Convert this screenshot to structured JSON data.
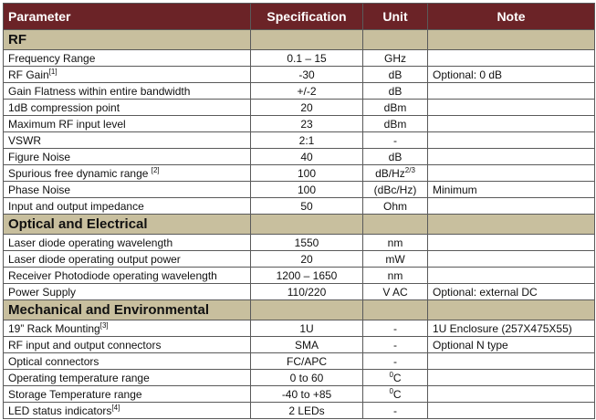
{
  "headers": [
    "Parameter",
    "Specification",
    "Unit",
    "Note"
  ],
  "colors": {
    "header_bg": "#6b2327",
    "section_bg": "#c8bf9e"
  },
  "sections": [
    {
      "title": "RF",
      "rows": [
        {
          "param": "Frequency Range",
          "sup": "",
          "spec": "0.1 – 15",
          "unit": "GHz",
          "unit_pre_sup": "",
          "unit_sup": "",
          "note": ""
        },
        {
          "param": "RF Gain",
          "sup": "[1]",
          "spec": "-30",
          "unit": "dB",
          "unit_pre_sup": "",
          "unit_sup": "",
          "note": "Optional: 0 dB"
        },
        {
          "param": "Gain Flatness within entire bandwidth",
          "sup": "",
          "spec": "+/-2",
          "unit": "dB",
          "unit_pre_sup": "",
          "unit_sup": "",
          "note": ""
        },
        {
          "param": "1dB compression point",
          "sup": "",
          "spec": "20",
          "unit": "dBm",
          "unit_pre_sup": "",
          "unit_sup": "",
          "note": ""
        },
        {
          "param": "Maximum RF input level",
          "sup": "",
          "spec": "23",
          "unit": "dBm",
          "unit_pre_sup": "",
          "unit_sup": "",
          "note": ""
        },
        {
          "param": "VSWR",
          "sup": "",
          "spec": "2:1",
          "unit": "-",
          "unit_pre_sup": "",
          "unit_sup": "",
          "note": ""
        },
        {
          "param": "Figure Noise",
          "sup": "",
          "spec": "40",
          "unit": "dB",
          "unit_pre_sup": "",
          "unit_sup": "",
          "note": ""
        },
        {
          "param": "Spurious free dynamic range ",
          "sup": "[2]",
          "spec": "100",
          "unit": "dB/Hz",
          "unit_pre_sup": "",
          "unit_sup": "2/3",
          "note": ""
        },
        {
          "param": "Phase Noise",
          "sup": "",
          "spec": "100",
          "unit": "(dBc/Hz)",
          "unit_pre_sup": "",
          "unit_sup": "",
          "note": "Minimum"
        },
        {
          "param": "Input and output impedance",
          "sup": "",
          "spec": "50",
          "unit": "Ohm",
          "unit_pre_sup": "",
          "unit_sup": "",
          "note": ""
        }
      ]
    },
    {
      "title": "Optical and Electrical",
      "rows": [
        {
          "param": "Laser diode operating wavelength",
          "sup": "",
          "spec": "1550",
          "unit": "nm",
          "unit_pre_sup": "",
          "unit_sup": "",
          "note": ""
        },
        {
          "param": "Laser diode operating output power",
          "sup": "",
          "spec": "20",
          "unit": "mW",
          "unit_pre_sup": "",
          "unit_sup": "",
          "note": ""
        },
        {
          "param": "Receiver Photodiode operating wavelength",
          "sup": "",
          "spec": "1200 – 1650",
          "unit": "nm",
          "unit_pre_sup": "",
          "unit_sup": "",
          "note": ""
        },
        {
          "param": "Power Supply",
          "sup": "",
          "spec": "110/220",
          "unit": "V AC",
          "unit_pre_sup": "",
          "unit_sup": "",
          "note": "Optional: external DC"
        }
      ]
    },
    {
      "title": "Mechanical and Environmental",
      "rows": [
        {
          "param": "19” Rack Mounting",
          "sup": "[3]",
          "spec": "1U",
          "unit": "-",
          "unit_pre_sup": "",
          "unit_sup": "",
          "note": "1U Enclosure (257X475X55)"
        },
        {
          "param": "RF input and output connectors",
          "sup": "",
          "spec": "SMA",
          "unit": "-",
          "unit_pre_sup": "",
          "unit_sup": "",
          "note": "Optional N type"
        },
        {
          "param": "Optical connectors",
          "sup": "",
          "spec": "FC/APC",
          "unit": "-",
          "unit_pre_sup": "",
          "unit_sup": "",
          "note": ""
        },
        {
          "param": "Operating temperature range",
          "sup": "",
          "spec": "0 to 60",
          "unit": "C",
          "unit_pre_sup": "0",
          "unit_sup": "",
          "note": ""
        },
        {
          "param": "Storage Temperature range",
          "sup": "",
          "spec": "-40 to +85",
          "unit": "C",
          "unit_pre_sup": "0",
          "unit_sup": "",
          "note": ""
        },
        {
          "param": "LED status indicators",
          "sup": "[4]",
          "spec": "2 LEDs",
          "unit": "-",
          "unit_pre_sup": "",
          "unit_sup": "",
          "note": ""
        }
      ]
    }
  ]
}
